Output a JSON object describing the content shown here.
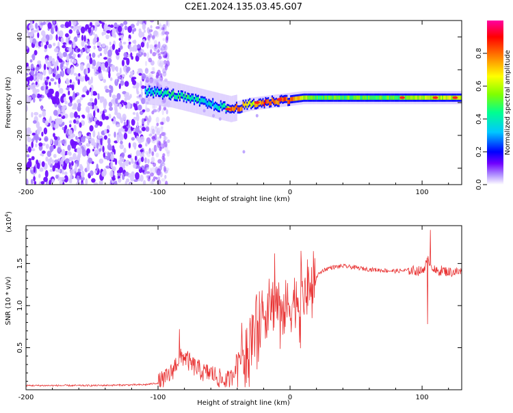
{
  "title": "C2E1.2024.135.03.45.G07",
  "chart_data": [
    {
      "type": "heatmap",
      "xlabel": "Height of straight line (km)",
      "ylabel": "Frequency (Hz)",
      "xlim": [
        -200,
        130
      ],
      "ylim": [
        -50,
        50
      ],
      "x_ticks": [
        "-200",
        "-100",
        "0",
        "100"
      ],
      "x_tick_values": [
        -200,
        -100,
        0,
        100
      ],
      "y_ticks": [
        "-40",
        "-20",
        "0",
        "20",
        "40"
      ],
      "y_tick_values": [
        -40,
        -20,
        0,
        20,
        40
      ],
      "colorbar": {
        "label": "Normalized spectral amplitude",
        "range": [
          0,
          1
        ],
        "ticks": [
          "0.0",
          "0.2",
          "0.4",
          "0.6",
          "0.8"
        ],
        "tick_values": [
          0.0,
          0.2,
          0.4,
          0.6,
          0.8
        ],
        "colors": [
          "#ffffff",
          "#a070ff",
          "#6000ff",
          "#0000ff",
          "#00c8ff",
          "#00ff80",
          "#80ff00",
          "#ffff00",
          "#ff8000",
          "#ff0000",
          "#ff00a0"
        ]
      },
      "noise_region_x": [
        -200,
        -100
      ],
      "ridge": {
        "x": [
          -110,
          -100,
          -90,
          -80,
          -70,
          -60,
          -50,
          -45,
          -40,
          -30,
          -20,
          -10,
          0,
          10,
          20,
          40,
          60,
          80,
          100,
          130
        ],
        "freq": [
          7,
          6,
          5,
          3,
          1,
          -1,
          -3,
          -4,
          -3,
          -1,
          0,
          1,
          2,
          3,
          3,
          3,
          3,
          3,
          3,
          3
        ],
        "amplitude": [
          0.35,
          0.4,
          0.45,
          0.45,
          0.4,
          0.35,
          0.4,
          0.8,
          0.85,
          0.6,
          0.85,
          0.8,
          0.8,
          0.6,
          0.5,
          0.5,
          0.5,
          0.5,
          0.6,
          0.6
        ]
      },
      "hot_spots": [
        {
          "x": -47,
          "freq": -4
        },
        {
          "x": -25,
          "freq": 0
        },
        {
          "x": -8,
          "freq": 2
        },
        {
          "x": 85,
          "freq": 3
        },
        {
          "x": 110,
          "freq": 3
        },
        {
          "x": 125,
          "freq": 3
        }
      ]
    },
    {
      "type": "line",
      "xlabel": "Height of straight line (km)",
      "ylabel": "SNR (10 * v/v)",
      "multiplier_label": "(x10",
      "multiplier_exp": "4",
      "xlim": [
        -200,
        130
      ],
      "ylim": [
        0,
        1.95
      ],
      "x_ticks": [
        "-200",
        "-100",
        "0",
        "100"
      ],
      "x_tick_values": [
        -200,
        -100,
        0,
        100
      ],
      "y_ticks": [
        "0.5",
        "1.0",
        "1.5"
      ],
      "y_tick_values": [
        0.5,
        1.0,
        1.5
      ],
      "color": "#e83030",
      "series": [
        {
          "x": [
            -200,
            -150,
            -110,
            -100,
            -95,
            -90,
            -85,
            -80,
            -75,
            -70,
            -65,
            -60,
            -55,
            -50,
            -45,
            -40,
            -35,
            -30,
            -25,
            -20,
            -15,
            -10,
            -5,
            0,
            5,
            10,
            15,
            20,
            25,
            30,
            40,
            50,
            60,
            70,
            80,
            90,
            100,
            105,
            110,
            115,
            120,
            130
          ],
          "y": [
            0.05,
            0.05,
            0.06,
            0.08,
            0.12,
            0.2,
            0.35,
            0.4,
            0.3,
            0.25,
            0.2,
            0.2,
            0.15,
            0.1,
            0.12,
            0.35,
            0.5,
            0.6,
            0.8,
            0.9,
            1.0,
            1.05,
            0.95,
            1.0,
            1.1,
            1.15,
            1.25,
            1.35,
            1.42,
            1.45,
            1.47,
            1.45,
            1.43,
            1.42,
            1.41,
            1.42,
            1.41,
            1.55,
            1.4,
            1.42,
            1.4,
            1.4
          ]
        }
      ],
      "spikes": [
        {
          "x": -84,
          "y": 0.72
        },
        {
          "x": -12,
          "y": 1.62
        },
        {
          "x": 8,
          "y": 1.65
        },
        {
          "x": 106,
          "y": 1.9
        },
        {
          "x": 104,
          "y": 0.78
        }
      ]
    }
  ]
}
